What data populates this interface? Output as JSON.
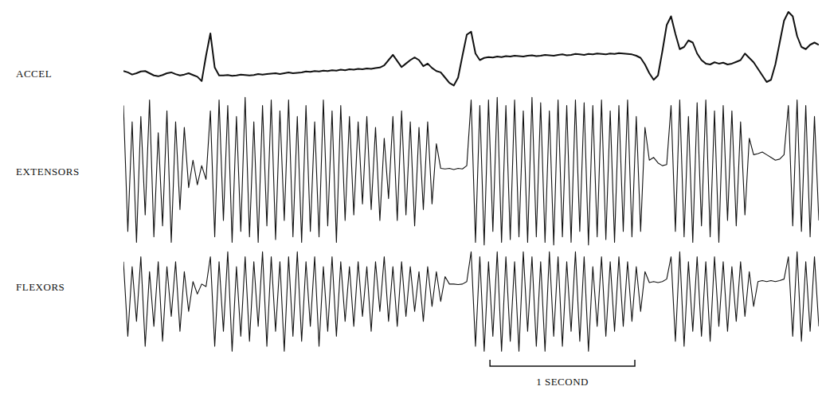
{
  "chart_data": {
    "type": "line",
    "x": [
      0,
      0.03,
      0.06,
      0.09,
      0.12,
      0.15,
      0.18,
      0.21,
      0.24,
      0.27,
      0.3,
      0.33,
      0.36,
      0.39,
      0.42,
      0.45,
      0.48,
      0.51,
      0.54,
      0.57,
      0.6,
      0.63,
      0.66,
      0.69,
      0.72,
      0.75,
      0.78,
      0.81,
      0.84,
      0.87,
      0.9,
      0.93,
      0.96,
      0.99,
      1.02,
      1.05,
      1.08,
      1.11,
      1.14,
      1.17,
      1.2,
      1.23,
      1.26,
      1.29,
      1.32,
      1.35,
      1.38,
      1.41,
      1.44,
      1.47,
      1.5,
      1.53,
      1.56,
      1.59,
      1.62,
      1.65,
      1.68,
      1.71,
      1.74,
      1.77,
      1.8,
      1.83,
      1.86,
      1.89,
      1.92,
      1.95,
      1.98,
      2.01,
      2.04,
      2.07,
      2.1,
      2.13,
      2.16,
      2.19,
      2.22,
      2.25,
      2.28,
      2.31,
      2.34,
      2.37,
      2.4,
      2.43,
      2.46,
      2.49,
      2.52,
      2.55,
      2.58,
      2.61,
      2.64,
      2.67,
      2.7,
      2.73,
      2.76,
      2.79,
      2.82,
      2.85,
      2.88,
      2.91,
      2.94,
      2.97,
      3,
      3.03,
      3.06,
      3.09,
      3.12,
      3.15,
      3.18,
      3.21,
      3.24,
      3.27,
      3.3,
      3.33,
      3.36,
      3.39,
      3.42,
      3.45,
      3.48,
      3.51,
      3.54,
      3.57,
      3.6,
      3.63,
      3.66,
      3.69,
      3.72,
      3.75,
      3.78,
      3.81,
      3.84,
      3.87,
      3.9,
      3.93,
      3.96,
      3.99,
      4.02,
      4.05,
      4.08,
      4.11,
      4.14,
      4.17,
      4.2,
      4.23,
      4.26,
      4.29,
      4.32,
      4.35,
      4.38,
      4.41,
      4.44,
      4.47,
      4.5,
      4.53,
      4.56,
      4.59,
      4.62,
      4.65,
      4.68,
      4.71,
      4.74,
      4.77,
      4.8
    ],
    "xlim": [
      0,
      4.8
    ],
    "ylim": [
      -1.6,
      1.6
    ],
    "tick_labels": false,
    "color": "#111111",
    "series": [
      {
        "name": "ACCEL",
        "values": [
          0.05,
          0.02,
          -0.03,
          0.0,
          0.04,
          0.05,
          0.0,
          -0.05,
          -0.07,
          -0.04,
          0.0,
          0.02,
          -0.02,
          -0.05,
          -0.03,
          0.0,
          -0.04,
          -0.08,
          -0.18,
          0.4,
          0.91,
          0.13,
          -0.05,
          -0.05,
          -0.04,
          -0.06,
          -0.05,
          -0.03,
          -0.04,
          -0.05,
          -0.04,
          -0.02,
          -0.03,
          -0.02,
          -0.01,
          0.0,
          -0.02,
          0.0,
          0.02,
          0.0,
          0.01,
          0.02,
          0.04,
          0.03,
          0.05,
          0.04,
          0.06,
          0.05,
          0.07,
          0.06,
          0.08,
          0.07,
          0.09,
          0.08,
          0.1,
          0.09,
          0.11,
          0.1,
          0.12,
          0.13,
          0.18,
          0.3,
          0.42,
          0.28,
          0.14,
          0.22,
          0.3,
          0.36,
          0.3,
          0.16,
          0.22,
          0.12,
          0.05,
          0.02,
          -0.1,
          -0.22,
          -0.28,
          -0.1,
          0.4,
          0.88,
          0.95,
          0.45,
          0.3,
          0.35,
          0.37,
          0.36,
          0.38,
          0.37,
          0.39,
          0.38,
          0.4,
          0.39,
          0.38,
          0.4,
          0.41,
          0.39,
          0.4,
          0.42,
          0.41,
          0.4,
          0.42,
          0.43,
          0.41,
          0.42,
          0.44,
          0.43,
          0.42,
          0.44,
          0.43,
          0.45,
          0.44,
          0.43,
          0.45,
          0.44,
          0.46,
          0.45,
          0.44,
          0.43,
          0.4,
          0.35,
          0.2,
          0.0,
          -0.15,
          -0.05,
          0.5,
          1.1,
          1.3,
          0.9,
          0.55,
          0.6,
          0.75,
          0.7,
          0.45,
          0.3,
          0.22,
          0.2,
          0.25,
          0.22,
          0.24,
          0.2,
          0.22,
          0.26,
          0.3,
          0.45,
          0.35,
          0.25,
          0.1,
          -0.05,
          -0.2,
          -0.15,
          0.2,
          0.7,
          1.2,
          1.4,
          1.3,
          0.85,
          0.6,
          0.55,
          0.65,
          0.7,
          0.65
        ]
      },
      {
        "name": "EXTENSORS",
        "values": [
          1.2,
          -1.1,
          0.9,
          -1.3,
          1.0,
          -0.8,
          1.3,
          -1.2,
          0.7,
          -1.0,
          1.1,
          -1.3,
          0.9,
          -0.7,
          0.8,
          -0.3,
          0.2,
          -0.25,
          0.1,
          -0.15,
          1.1,
          -1.2,
          1.3,
          -0.9,
          1.2,
          -1.3,
          1.0,
          -1.1,
          1.35,
          -1.2,
          0.9,
          -1.3,
          1.2,
          -1.0,
          1.3,
          -1.25,
          1.1,
          -0.9,
          1.3,
          -1.2,
          1.0,
          -1.3,
          1.2,
          -1.1,
          0.9,
          -1.2,
          1.3,
          -1.0,
          1.1,
          -1.3,
          1.2,
          -0.9,
          1.0,
          -0.8,
          0.9,
          -0.6,
          1.0,
          -0.7,
          0.8,
          -0.9,
          0.6,
          -0.5,
          1.0,
          -0.9,
          1.1,
          -0.8,
          0.9,
          -1.0,
          0.8,
          -0.7,
          0.9,
          -0.6,
          0.5,
          0.05,
          0.04,
          0.05,
          0.03,
          0.05,
          0.04,
          0.1,
          1.3,
          -1.3,
          1.2,
          -1.35,
          1.3,
          -1.1,
          1.35,
          -1.3,
          1.2,
          -1.25,
          1.3,
          -1.2,
          1.1,
          -1.3,
          1.35,
          -1.2,
          1.25,
          -1.3,
          1.1,
          -1.35,
          1.3,
          -1.2,
          1.2,
          -1.3,
          1.3,
          -1.1,
          1.25,
          -1.35,
          1.2,
          -1.2,
          1.3,
          -1.25,
          1.1,
          -1.3,
          1.2,
          -1.1,
          1.3,
          -1.2,
          1.0,
          -1.1,
          0.8,
          0.2,
          0.25,
          0.15,
          0.1,
          0.12,
          1.2,
          -1.1,
          1.3,
          -1.2,
          1.0,
          -1.3,
          1.25,
          -1.0,
          1.3,
          -1.2,
          1.1,
          -1.3,
          1.2,
          -0.9,
          1.1,
          -1.0,
          0.9,
          -0.8,
          0.6,
          0.3,
          0.32,
          0.35,
          0.3,
          0.25,
          0.2,
          0.22,
          0.3,
          1.2,
          -1.0,
          1.3,
          -1.1,
          1.2,
          -1.2,
          1.0,
          -0.9
        ]
      },
      {
        "name": "FLEXORS",
        "values": [
          0.5,
          -1.0,
          0.4,
          -0.7,
          0.6,
          -1.2,
          0.3,
          -0.8,
          0.5,
          -1.1,
          0.4,
          -0.6,
          0.5,
          -0.9,
          0.3,
          -0.5,
          0.1,
          -0.15,
          0.05,
          0.0,
          0.6,
          -1.2,
          0.5,
          -0.9,
          0.7,
          -1.3,
          0.4,
          -1.0,
          0.6,
          -1.1,
          0.5,
          -0.8,
          0.7,
          -1.2,
          0.6,
          -0.9,
          0.5,
          -1.3,
          0.6,
          -1.0,
          0.7,
          -1.1,
          0.5,
          -0.8,
          0.6,
          -1.2,
          0.4,
          -0.9,
          0.6,
          -1.0,
          0.5,
          -0.7,
          0.4,
          -0.8,
          0.5,
          -0.6,
          0.4,
          -0.9,
          0.5,
          -0.5,
          0.6,
          -0.7,
          0.4,
          -0.8,
          0.5,
          -0.6,
          0.4,
          -0.5,
          0.3,
          -0.7,
          0.4,
          -0.4,
          0.3,
          -0.3,
          0.2,
          0.05,
          0.05,
          0.04,
          0.05,
          0.1,
          0.7,
          -1.2,
          0.6,
          -1.3,
          0.5,
          -1.0,
          0.7,
          -1.3,
          0.6,
          -1.1,
          0.5,
          -1.3,
          0.7,
          -0.9,
          0.6,
          -1.2,
          0.5,
          -1.3,
          0.7,
          -1.0,
          0.6,
          -1.2,
          0.5,
          -0.9,
          0.7,
          -1.1,
          0.6,
          -1.3,
          0.4,
          -0.8,
          0.6,
          -1.0,
          0.5,
          -0.9,
          0.6,
          -0.8,
          0.5,
          -0.7,
          0.4,
          -0.5,
          0.3,
          0.08,
          0.1,
          0.08,
          0.1,
          0.15,
          0.6,
          -1.1,
          0.7,
          -1.2,
          0.5,
          -0.9,
          0.6,
          -1.0,
          0.5,
          -1.1,
          0.6,
          -0.8,
          0.5,
          -0.9,
          0.4,
          -0.7,
          0.5,
          -0.6,
          0.3,
          -0.4,
          0.1,
          0.12,
          0.1,
          0.12,
          0.1,
          0.12,
          0.15,
          0.6,
          -1.0,
          0.7,
          -1.1,
          0.5,
          -0.9,
          0.6,
          -0.8
        ]
      }
    ],
    "scale_bar": {
      "label": "1 SECOND",
      "x": [
        2.53,
        3.53
      ]
    }
  }
}
